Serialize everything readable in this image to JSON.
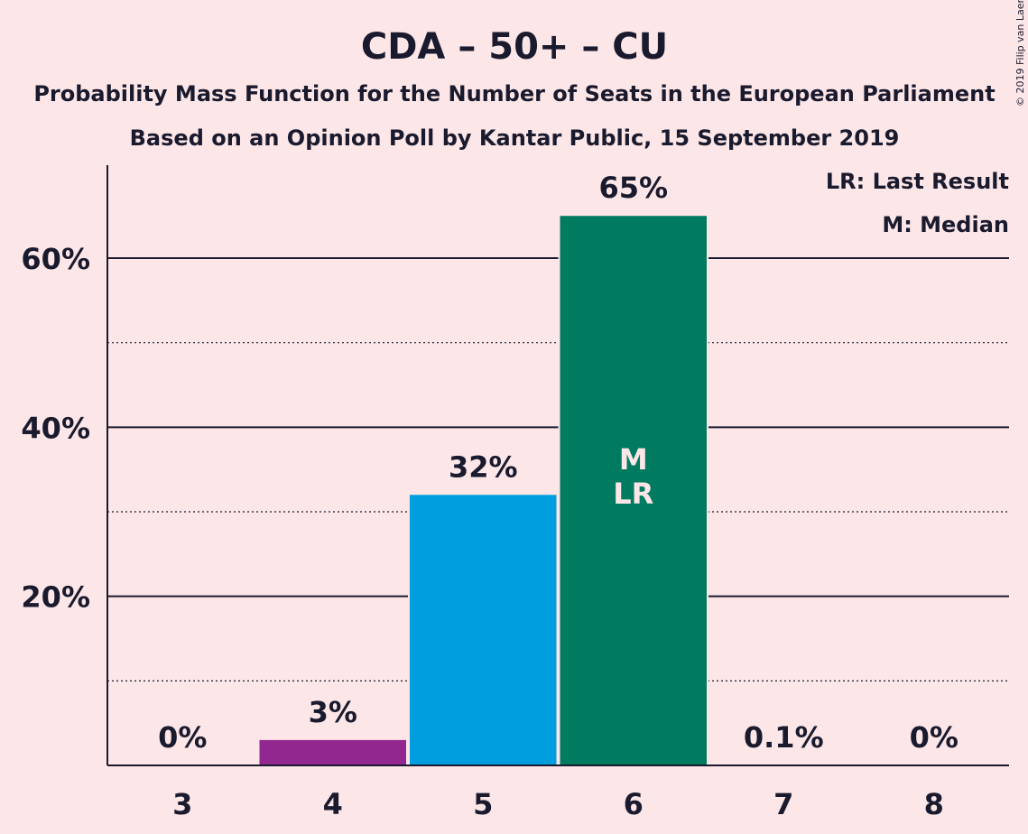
{
  "credit": "© 2019 Filip van Laenen",
  "chart_data": {
    "type": "bar",
    "title": "CDA – 50+ – CU",
    "subtitle": "Probability Mass Function for the Number of Seats in the European Parliament",
    "subtitle2": "Based on an Opinion Poll by Kantar Public, 15 September 2019",
    "xlabel": "",
    "ylabel": "",
    "categories": [
      "3",
      "4",
      "5",
      "6",
      "7",
      "8"
    ],
    "values": [
      0,
      3,
      32,
      65,
      0.1,
      0
    ],
    "value_labels": [
      "0%",
      "3%",
      "32%",
      "65%",
      "0.1%",
      "0%"
    ],
    "bar_colors": [
      "#1a1a2e",
      "#92278f",
      "#009ede",
      "#007b5f",
      "#1a1a2e",
      "#1a1a2e"
    ],
    "ylim": [
      0,
      71
    ],
    "yticks": [
      20,
      40,
      60
    ],
    "ytick_labels": [
      "20%",
      "40%",
      "60%"
    ],
    "minor_gridlines": [
      10,
      30,
      50
    ],
    "grid": true,
    "legend": [
      "LR: Last Result",
      "M: Median"
    ],
    "legend_position": "top-right",
    "annotations": [
      {
        "category": "6",
        "lines": [
          "M",
          "LR"
        ]
      }
    ]
  }
}
